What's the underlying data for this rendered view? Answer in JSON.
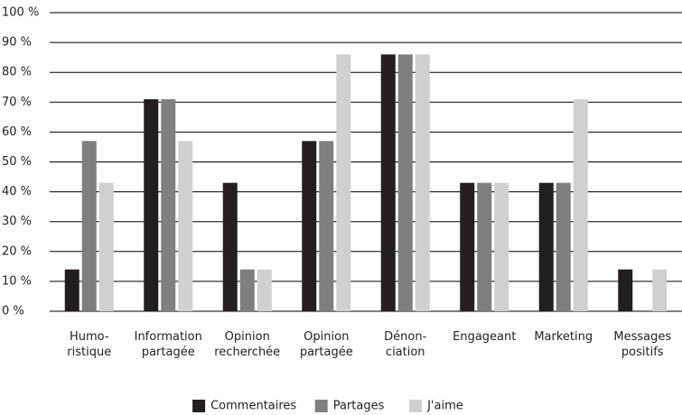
{
  "chart_data": {
    "type": "bar",
    "categories": [
      "Humo-\nristique",
      "Information\npartagée",
      "Opinion\nrecherchée",
      "Opinion\npartagée",
      "Dénon-\nciation",
      "Engageant",
      "Marketing",
      "Messages\npositifs"
    ],
    "series": [
      {
        "name": "Commentaires",
        "color": "#231f20",
        "values": [
          14,
          71,
          43,
          57,
          86,
          43,
          43,
          14
        ]
      },
      {
        "name": "Partages",
        "color": "#7f7f7f",
        "values": [
          57,
          71,
          14,
          57,
          86,
          43,
          43,
          0
        ]
      },
      {
        "name": "J'aime",
        "color": "#d0d0d0",
        "values": [
          43,
          57,
          14,
          86,
          86,
          43,
          71,
          14
        ]
      }
    ],
    "ylim": [
      0,
      100
    ],
    "yticks": [
      {
        "value": 0,
        "label": "0 %"
      },
      {
        "value": 10,
        "label": "10 %"
      },
      {
        "value": 20,
        "label": "20 %"
      },
      {
        "value": 30,
        "label": "30 %"
      },
      {
        "value": 40,
        "label": "40 %"
      },
      {
        "value": 50,
        "label": "50 %"
      },
      {
        "value": 60,
        "label": "60 %"
      },
      {
        "value": 70,
        "label": "70 %"
      },
      {
        "value": 80,
        "label": "80 %"
      },
      {
        "value": 90,
        "label": "90 %"
      },
      {
        "value": 100,
        "label": "100 %"
      }
    ],
    "grid": true,
    "legend": "bottom"
  }
}
